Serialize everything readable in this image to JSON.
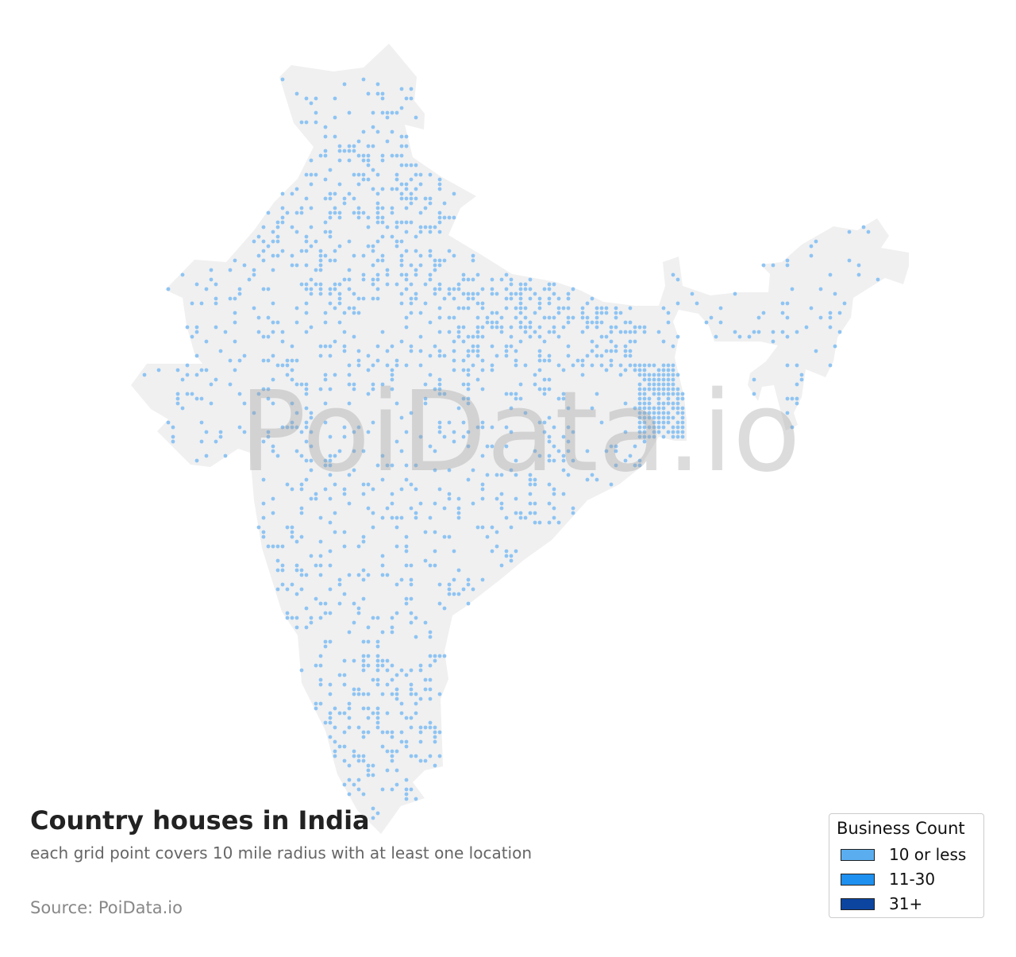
{
  "map": {
    "region": "India",
    "land_color": "#f0f0f0",
    "dot_color": "#8ec4f3",
    "watermark": "PoiData.io"
  },
  "title": "Country houses in India",
  "subtitle": "each grid point covers 10 mile radius with at least one location",
  "source": "Source: PoiData.io",
  "legend": {
    "title": "Business Count",
    "items": [
      {
        "label": "10 or less",
        "color": "#5aaef0"
      },
      {
        "label": "11-30",
        "color": "#1e90ef"
      },
      {
        "label": "31+",
        "color": "#0b45a0"
      }
    ]
  }
}
